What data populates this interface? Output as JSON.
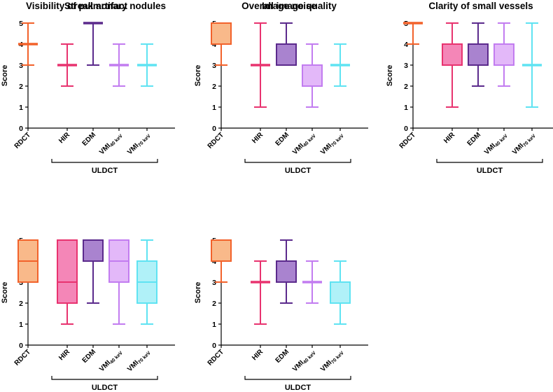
{
  "colors": {
    "RDCT": "#f2622b",
    "HIR": "#e8336f",
    "EDM": "#5b2a8c",
    "VMI40": "#c27cf0",
    "VMI70": "#5fe3f2",
    "fill_RDCT": "#f9b98a",
    "fill_HIR": "#f486b7",
    "fill_EDM": "#a983cf",
    "fill_VMI40": "#e3b8f9",
    "fill_VMI70": "#b0f1f8"
  },
  "chart_data": [
    {
      "type": "box",
      "title": "Streak artifact",
      "ylabel": "Score",
      "ylim": [
        0,
        5
      ],
      "yticks": [
        "0",
        "1",
        "2",
        "3",
        "4",
        "5"
      ],
      "categories": [
        "RDCT",
        "HIR",
        "EDM",
        "VMI",
        "VMI"
      ],
      "category_subscripts": [
        "",
        "",
        "",
        "40 keV",
        "70 keV"
      ],
      "group_label": "ULDCT",
      "boxes": [
        {
          "min": 3,
          "q1": 4,
          "median": 4,
          "q3": 4,
          "max": 5
        },
        {
          "min": 2,
          "q1": 3,
          "median": 3,
          "q3": 3,
          "max": 4
        },
        {
          "min": 3,
          "q1": 5,
          "median": 5,
          "q3": 5,
          "max": 5
        },
        {
          "min": 2,
          "q1": 3,
          "median": 3,
          "q3": 3,
          "max": 4
        },
        {
          "min": 2,
          "q1": 3,
          "median": 3,
          "q3": 3,
          "max": 4
        }
      ]
    },
    {
      "type": "box",
      "title": "Image noise",
      "ylabel": "Score",
      "ylim": [
        0,
        5
      ],
      "yticks": [
        "0",
        "1",
        "2",
        "3",
        "4",
        "5"
      ],
      "categories": [
        "RDCT",
        "HIR",
        "EDM",
        "VMI",
        "VMI"
      ],
      "category_subscripts": [
        "",
        "",
        "",
        "40 keV",
        "70 keV"
      ],
      "group_label": "ULDCT",
      "boxes": [
        {
          "min": 3,
          "q1": 4,
          "median": 5,
          "q3": 5,
          "max": 5
        },
        {
          "min": 1,
          "q1": 3,
          "median": 3,
          "q3": 3,
          "max": 5
        },
        {
          "min": 3,
          "q1": 3,
          "median": 4,
          "q3": 4,
          "max": 5
        },
        {
          "min": 1,
          "q1": 2,
          "median": 2,
          "q3": 3,
          "max": 4
        },
        {
          "min": 2,
          "q1": 3,
          "median": 3,
          "q3": 3,
          "max": 4
        }
      ]
    },
    {
      "type": "box",
      "title": "Clarity of small vessels",
      "ylabel": "Score",
      "ylim": [
        0,
        5
      ],
      "yticks": [
        "0",
        "1",
        "2",
        "3",
        "4",
        "5"
      ],
      "categories": [
        "RDCT",
        "HIR",
        "EDM",
        "VMI",
        "VMI"
      ],
      "category_subscripts": [
        "",
        "",
        "",
        "40 keV",
        "70 keV"
      ],
      "group_label": "ULDCT",
      "boxes": [
        {
          "min": 4,
          "q1": 5,
          "median": 5,
          "q3": 5,
          "max": 5
        },
        {
          "min": 1,
          "q1": 3,
          "median": 3,
          "q3": 4,
          "max": 5
        },
        {
          "min": 2,
          "q1": 3,
          "median": 4,
          "q3": 4,
          "max": 5
        },
        {
          "min": 2,
          "q1": 3,
          "median": 4,
          "q3": 4,
          "max": 5
        },
        {
          "min": 1,
          "q1": 3,
          "median": 3,
          "q3": 3,
          "max": 5
        }
      ]
    },
    {
      "type": "box",
      "title": "Visibility of pulmonary nodules",
      "ylabel": "Score",
      "ylim": [
        0,
        5
      ],
      "yticks": [
        "0",
        "1",
        "2",
        "3",
        "4",
        "5"
      ],
      "categories": [
        "RDCT",
        "HIR",
        "EDM",
        "VMI",
        "VMI"
      ],
      "category_subscripts": [
        "",
        "",
        "",
        "40 keV",
        "70 keV"
      ],
      "group_label": "ULDCT",
      "boxes": [
        {
          "min": 3,
          "q1": 3,
          "median": 4,
          "q3": 5,
          "max": 5
        },
        {
          "min": 1,
          "q1": 2,
          "median": 3,
          "q3": 5,
          "max": 5
        },
        {
          "min": 2,
          "q1": 4,
          "median": 5,
          "q3": 5,
          "max": 5
        },
        {
          "min": 1,
          "q1": 3,
          "median": 4,
          "q3": 5,
          "max": 5
        },
        {
          "min": 1,
          "q1": 2,
          "median": 3,
          "q3": 4,
          "max": 5
        }
      ]
    },
    {
      "type": "box",
      "title": "Overall image quality",
      "ylabel": "Score",
      "ylim": [
        0,
        5
      ],
      "yticks": [
        "0",
        "1",
        "2",
        "3",
        "4",
        "5"
      ],
      "categories": [
        "RDCT",
        "HIR",
        "EDM",
        "VMI",
        "VMI"
      ],
      "category_subscripts": [
        "",
        "",
        "",
        "40 keV",
        "70 keV"
      ],
      "group_label": "ULDCT",
      "boxes": [
        {
          "min": 3,
          "q1": 4,
          "median": 5,
          "q3": 5,
          "max": 5
        },
        {
          "min": 1,
          "q1": 3,
          "median": 3,
          "q3": 3,
          "max": 4
        },
        {
          "min": 2,
          "q1": 3,
          "median": 4,
          "q3": 4,
          "max": 5
        },
        {
          "min": 2,
          "q1": 3,
          "median": 3,
          "q3": 3,
          "max": 4
        },
        {
          "min": 1,
          "q1": 2,
          "median": 3,
          "q3": 3,
          "max": 4
        }
      ]
    }
  ]
}
